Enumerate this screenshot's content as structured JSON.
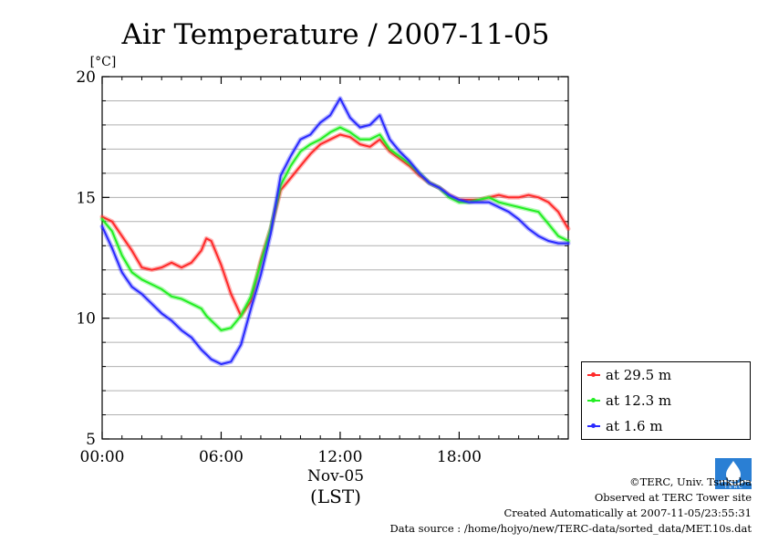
{
  "title": "Air Temperature / 2007-11-05",
  "unit_label": "[°C]",
  "date_label": "Nov-05",
  "lst_label": "(LST)",
  "colors": {
    "s1": "#ff2a2a",
    "s2": "#22ee22",
    "s3": "#2a2aff"
  },
  "footer": {
    "copyright": "©TERC, Univ. Tsukuba",
    "observed": "Observed at TERC Tower site",
    "created": "Created Automatically at 2007-11-05/23:55:31",
    "source": "Data source : /home/hojyo/new/TERC-data/sorted_data/MET.10s.dat"
  },
  "logo_icon": "terc-logo-icon",
  "chart_data": {
    "type": "line",
    "title": "Air Temperature / 2007-11-05",
    "xlabel": "Nov-05",
    "ylabel": "[°C]",
    "xlim": [
      0,
      23.5
    ],
    "ylim": [
      5,
      20
    ],
    "xticks": [
      0,
      6,
      12,
      18
    ],
    "xtick_labels": [
      "00:00",
      "06:00",
      "12:00",
      "18:00"
    ],
    "yticks": [
      5,
      10,
      15,
      20
    ],
    "ytick_labels": [
      "5",
      "10",
      "15",
      "20"
    ],
    "grid": true,
    "legend_position": "lower-right-outside",
    "x": [
      0,
      0.5,
      1,
      1.5,
      2,
      2.5,
      3,
      3.5,
      4,
      4.5,
      5,
      5.25,
      5.5,
      6,
      6.5,
      7,
      7.5,
      8,
      8.5,
      9,
      9.5,
      10,
      10.5,
      11,
      11.5,
      12,
      12.5,
      13,
      13.5,
      14,
      14.5,
      15,
      15.5,
      16,
      16.5,
      17,
      17.5,
      18,
      18.5,
      19,
      19.5,
      20,
      20.5,
      21,
      21.5,
      22,
      22.5,
      23,
      23.5
    ],
    "series": [
      {
        "name": "at 29.5 m",
        "color": "#ff2a2a",
        "values": [
          14.2,
          14.0,
          13.4,
          12.8,
          12.1,
          12.0,
          12.1,
          12.3,
          12.1,
          12.3,
          12.8,
          13.3,
          13.2,
          12.2,
          11.0,
          10.1,
          10.7,
          12.4,
          13.7,
          15.3,
          15.8,
          16.3,
          16.8,
          17.2,
          17.4,
          17.6,
          17.5,
          17.2,
          17.1,
          17.4,
          16.9,
          16.6,
          16.3,
          15.9,
          15.6,
          15.4,
          15.1,
          14.9,
          14.9,
          14.9,
          15.0,
          15.1,
          15.0,
          15.0,
          15.1,
          15.0,
          14.8,
          14.4,
          13.7
        ]
      },
      {
        "name": "at 12.3 m",
        "color": "#22ee22",
        "values": [
          14.1,
          13.6,
          12.6,
          11.9,
          11.6,
          11.4,
          11.2,
          10.9,
          10.8,
          10.6,
          10.4,
          10.1,
          9.9,
          9.5,
          9.6,
          10.1,
          10.9,
          12.3,
          13.7,
          15.5,
          16.3,
          16.9,
          17.2,
          17.4,
          17.7,
          17.9,
          17.7,
          17.4,
          17.4,
          17.6,
          17.0,
          16.7,
          16.4,
          16.0,
          15.6,
          15.4,
          15.0,
          14.8,
          14.8,
          14.9,
          15.0,
          14.8,
          14.7,
          14.6,
          14.5,
          14.4,
          13.9,
          13.4,
          13.2
        ]
      },
      {
        "name": "at 1.6 m",
        "color": "#2a2aff",
        "values": [
          13.8,
          12.9,
          11.9,
          11.3,
          11.0,
          10.6,
          10.2,
          9.9,
          9.5,
          9.2,
          8.7,
          8.5,
          8.3,
          8.1,
          8.2,
          8.9,
          10.4,
          11.8,
          13.5,
          15.9,
          16.7,
          17.4,
          17.6,
          18.1,
          18.4,
          19.1,
          18.3,
          17.9,
          18.0,
          18.4,
          17.4,
          16.9,
          16.5,
          16.0,
          15.6,
          15.4,
          15.1,
          14.9,
          14.8,
          14.8,
          14.8,
          14.6,
          14.4,
          14.1,
          13.7,
          13.4,
          13.2,
          13.1,
          13.1
        ]
      }
    ]
  }
}
